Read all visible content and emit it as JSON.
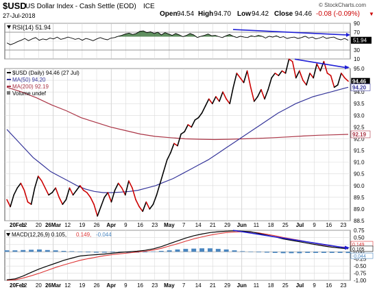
{
  "header": {
    "symbol": "$USD",
    "name": "US Dollar Index - Cash Settle (EOD)",
    "exchange": "ICE",
    "watermark": "© StockCharts.com",
    "date": "27-Jul-2018",
    "open_label": "Open",
    "open": "94.54",
    "high_label": "High",
    "high": "94.70",
    "low_label": "Low",
    "low": "94.42",
    "close_label": "Close",
    "close": "94.46",
    "change": "-0.08 (-0.09%)"
  },
  "colors": {
    "price_up": "#000000",
    "price_down": "#cc0000",
    "ma50": "#333399",
    "ma200": "#aa3344",
    "trendline": "#1f1fd6",
    "rsi_fill": "#2c6b2c",
    "macd_line": "#000000",
    "signal_line": "#dd3333",
    "histogram": "#4a86c0",
    "grid": "#d9d9d9"
  },
  "x_ticks": [
    "20Feb",
    "12",
    "20",
    "26Mar",
    "12",
    "19",
    "26",
    "Apr",
    "9",
    "16",
    "23",
    "May",
    "7",
    "14",
    "21",
    "29",
    "Jun",
    "11",
    "18",
    "25",
    "Jul",
    "9",
    "16",
    "23"
  ],
  "chart_data": [
    {
      "type": "line",
      "panel": "rsi",
      "legend": "RSI(14) 51.94",
      "ylim": [
        10,
        90
      ],
      "y_ticks": [
        10,
        30,
        50,
        70,
        90
      ],
      "value_label": "51.94",
      "series": [
        {
          "name": "RSI(14)",
          "values": [
            46,
            42,
            45,
            49,
            52,
            56,
            51,
            55,
            58,
            52,
            55,
            53,
            57,
            55,
            59,
            54,
            56,
            59,
            57,
            54,
            56,
            52,
            56,
            54,
            51,
            55,
            58,
            55,
            53,
            57,
            58,
            61,
            63,
            66,
            68,
            65,
            67,
            72,
            73,
            69,
            71,
            67,
            70,
            64,
            69,
            66,
            63,
            67,
            64,
            60,
            63,
            67,
            64,
            58,
            61,
            63,
            66,
            62,
            63,
            60,
            58,
            62,
            65,
            61,
            58,
            61,
            59,
            58,
            62,
            60,
            63,
            61,
            57,
            61,
            59,
            62,
            58,
            60,
            56,
            58,
            59,
            56,
            58,
            61,
            57,
            59,
            55,
            57,
            60,
            56,
            58,
            59,
            55,
            53,
            56,
            51.94
          ]
        }
      ]
    },
    {
      "type": "line",
      "panel": "price",
      "legend": [
        "$USD (Daily) 94.46 (27 Jul)",
        "MA(50) 94.20",
        "MA(200) 92.19",
        "Volume undef"
      ],
      "ylim": [
        88.5,
        95.0
      ],
      "y_ticks": [
        88.5,
        89.0,
        89.5,
        90.0,
        90.5,
        91.0,
        91.5,
        92.0,
        92.5,
        93.0,
        93.5,
        94.0,
        94.5,
        95.0
      ],
      "value_labels": [
        "94.46",
        "94.20",
        "92.19"
      ],
      "series": [
        {
          "name": "$USD (Daily)",
          "values": [
            89.4,
            89.1,
            89.6,
            89.9,
            90.1,
            89.8,
            89.3,
            89.2,
            89.9,
            90.4,
            90.2,
            89.9,
            89.6,
            89.7,
            89.9,
            89.5,
            89.2,
            89.4,
            89.9,
            89.6,
            89.8,
            90.0,
            89.8,
            89.7,
            89.5,
            89.2,
            88.7,
            89.1,
            89.5,
            89.7,
            89.3,
            89.8,
            90.1,
            89.9,
            89.6,
            90.2,
            89.9,
            89.4,
            89.1,
            88.9,
            89.3,
            89.0,
            89.2,
            89.6,
            90.1,
            90.6,
            91.1,
            91.4,
            91.8,
            91.7,
            92.2,
            92.3,
            92.6,
            92.5,
            92.8,
            92.9,
            93.1,
            93.4,
            93.7,
            93.5,
            93.8,
            93.6,
            94.0,
            93.7,
            93.5,
            94.2,
            94.8,
            94.6,
            94.4,
            94.9,
            94.2,
            93.6,
            93.8,
            94.1,
            93.7,
            94.1,
            94.6,
            94.8,
            94.7,
            94.9,
            94.8,
            95.4,
            95.3,
            94.6,
            94.9,
            94.5,
            94.3,
            94.8,
            94.6,
            95.2,
            94.9,
            95.3,
            94.8,
            94.7,
            94.2,
            94.3,
            94.8,
            94.6,
            94.46
          ]
        },
        {
          "name": "MA(50)",
          "values": [
            92.4,
            92.0,
            91.6,
            91.2,
            90.9,
            90.6,
            90.4,
            90.2,
            90.0,
            89.85,
            89.75,
            89.7,
            89.7,
            89.72,
            89.75,
            89.8,
            89.9,
            90.0,
            90.15,
            90.3,
            90.5,
            90.7,
            90.9,
            91.1,
            91.35,
            91.6,
            91.85,
            92.1,
            92.35,
            92.6,
            92.85,
            93.1,
            93.3,
            93.5,
            93.65,
            93.8,
            93.9,
            94.0,
            94.1,
            94.2
          ]
        },
        {
          "name": "MA(200)",
          "values": [
            94.2,
            94.0,
            93.75,
            93.45,
            93.2,
            92.9,
            92.7,
            92.5,
            92.35,
            92.2,
            92.1,
            92.05,
            92.0,
            91.98,
            91.97,
            91.98,
            92.0,
            92.02,
            92.05,
            92.08,
            92.12,
            92.15,
            92.17,
            92.19
          ]
        }
      ]
    },
    {
      "type": "line",
      "panel": "macd",
      "legend": [
        "MACD(12,26,9) 0.105,",
        "0.149,",
        "-0.044"
      ],
      "ylim": [
        -1.0,
        0.75
      ],
      "y_ticks": [
        -1.0,
        -0.75,
        -0.5,
        -0.25,
        0.0,
        0.25,
        0.5,
        0.75
      ],
      "value_labels": [
        "0.149",
        "0.105",
        "-0.044"
      ],
      "series": [
        {
          "name": "MACD",
          "values": [
            -0.98,
            -0.95,
            -0.85,
            -0.72,
            -0.6,
            -0.5,
            -0.4,
            -0.3,
            -0.22,
            -0.15,
            -0.12,
            -0.1,
            -0.08,
            -0.05,
            -0.02,
            0.0,
            0.02,
            0.05,
            0.1,
            0.18,
            0.28,
            0.38,
            0.48,
            0.56,
            0.62,
            0.67,
            0.7,
            0.72,
            0.73,
            0.72,
            0.7,
            0.64,
            0.58,
            0.52,
            0.45,
            0.4,
            0.35,
            0.3,
            0.25,
            0.2,
            0.16,
            0.13,
            0.105
          ]
        },
        {
          "name": "Signal",
          "values": [
            -1.0,
            -0.98,
            -0.92,
            -0.84,
            -0.75,
            -0.65,
            -0.55,
            -0.46,
            -0.38,
            -0.3,
            -0.24,
            -0.19,
            -0.14,
            -0.1,
            -0.07,
            -0.04,
            -0.01,
            0.02,
            0.06,
            0.12,
            0.2,
            0.28,
            0.37,
            0.45,
            0.52,
            0.58,
            0.63,
            0.67,
            0.69,
            0.7,
            0.69,
            0.66,
            0.61,
            0.56,
            0.5,
            0.45,
            0.4,
            0.34,
            0.29,
            0.24,
            0.2,
            0.17,
            0.149
          ]
        },
        {
          "name": "Histogram",
          "values": [
            0.05,
            0.05,
            0.06,
            0.07,
            0.08,
            0.06,
            0.05,
            0.03,
            0.02,
            0.0,
            -0.02,
            -0.03,
            -0.03,
            -0.02,
            -0.03,
            -0.04,
            -0.03,
            -0.02,
            0.01,
            0.03,
            0.05,
            0.08,
            0.1,
            0.11,
            0.12,
            0.12,
            0.1,
            0.08,
            0.05,
            0.02,
            0.0,
            -0.02,
            -0.03,
            -0.04,
            -0.05,
            -0.05,
            -0.05,
            -0.04,
            -0.04,
            -0.04,
            -0.04,
            -0.04,
            -0.044
          ]
        }
      ]
    }
  ]
}
